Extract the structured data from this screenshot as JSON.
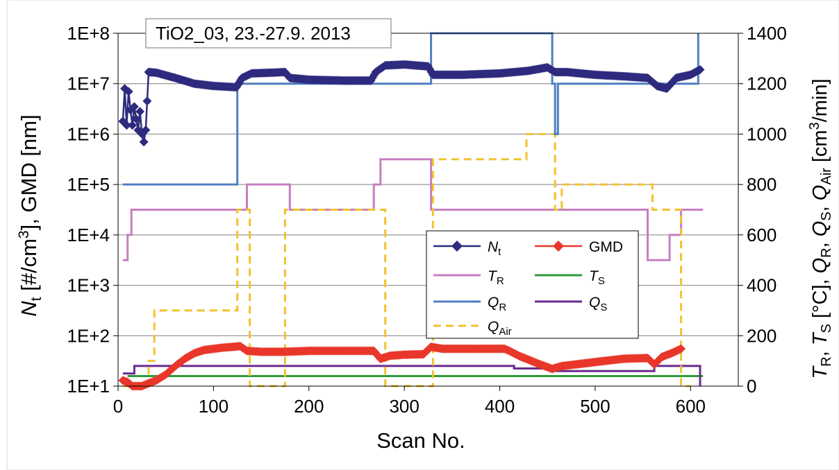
{
  "chart_data": {
    "type": "line",
    "annotation": "TiO2_03, 23.-27.9. 2013",
    "xlabel": "Scan No.",
    "ylabel_left": {
      "main": "N",
      "sub": "t",
      "rest": " [#/cm",
      "sup": "3",
      "end": "], GMD [nm]"
    },
    "ylabel_right": "T_R, T_S [°C], Q_R, Q_S, Q_Air [cm³/min]",
    "xlim": [
      0,
      650
    ],
    "xticks": [
      0,
      100,
      200,
      300,
      400,
      500,
      600
    ],
    "xtick_labels": [
      "0",
      "100",
      "200",
      "300",
      "400",
      "500",
      "600"
    ],
    "ylim_left": [
      10,
      100000000
    ],
    "yscale_left": "log",
    "yticks_left": [
      10,
      100,
      1000,
      10000,
      100000,
      1000000,
      10000000,
      100000000
    ],
    "ytick_labels_left": [
      "1E+1",
      "1E+2",
      "1E+3",
      "1E+4",
      "1E+5",
      "1E+6",
      "1E+7",
      "1E+8"
    ],
    "ylim_right": [
      0,
      1400
    ],
    "yticks_right": [
      0,
      200,
      400,
      600,
      800,
      1000,
      1200,
      1400
    ],
    "ytick_labels_right": [
      "0",
      "200",
      "400",
      "600",
      "800",
      "1000",
      "1200",
      "1400"
    ],
    "grid": "horizontal",
    "legend_position": "center-right",
    "series": [
      {
        "key": "Nt",
        "name_main": "N",
        "name_sub": "t",
        "axis": "left",
        "color": "#2E2A7E",
        "style": "line-diamond",
        "points": [
          [
            5,
            1800000
          ],
          [
            7,
            8000000
          ],
          [
            9,
            1500000
          ],
          [
            11,
            7000000
          ],
          [
            13,
            3000000
          ],
          [
            15,
            1500000
          ],
          [
            17,
            3500000
          ],
          [
            19,
            2000000
          ],
          [
            21,
            1200000
          ],
          [
            23,
            2800000
          ],
          [
            25,
            1000000
          ],
          [
            27,
            700000
          ],
          [
            29,
            1200000
          ],
          [
            32,
            17000000
          ],
          [
            40,
            16500000
          ],
          [
            60,
            13000000
          ],
          [
            80,
            10000000
          ],
          [
            100,
            9000000
          ],
          [
            124,
            8500000
          ],
          [
            130,
            13000000
          ],
          [
            140,
            16000000
          ],
          [
            160,
            16500000
          ],
          [
            175,
            17000000
          ],
          [
            180,
            13000000
          ],
          [
            200,
            12000000
          ],
          [
            240,
            11500000
          ],
          [
            265,
            11500000
          ],
          [
            270,
            17000000
          ],
          [
            280,
            23000000
          ],
          [
            300,
            24000000
          ],
          [
            325,
            22000000
          ],
          [
            330,
            15000000
          ],
          [
            360,
            15000000
          ],
          [
            400,
            16000000
          ],
          [
            430,
            18000000
          ],
          [
            450,
            21000000
          ],
          [
            458,
            17000000
          ],
          [
            470,
            17000000
          ],
          [
            500,
            15000000
          ],
          [
            530,
            14000000
          ],
          [
            555,
            13000000
          ],
          [
            565,
            9000000
          ],
          [
            575,
            8000000
          ],
          [
            585,
            13000000
          ],
          [
            600,
            15000000
          ],
          [
            610,
            19000000
          ]
        ]
      },
      {
        "key": "GMD",
        "name": "GMD",
        "axis": "left",
        "color": "#E8372A",
        "style": "line-diamond",
        "points": [
          [
            5,
            13
          ],
          [
            10,
            12
          ],
          [
            15,
            10
          ],
          [
            20,
            10
          ],
          [
            25,
            10
          ],
          [
            30,
            11
          ],
          [
            40,
            13
          ],
          [
            50,
            17
          ],
          [
            60,
            25
          ],
          [
            70,
            35
          ],
          [
            80,
            45
          ],
          [
            90,
            52
          ],
          [
            100,
            55
          ],
          [
            110,
            58
          ],
          [
            120,
            60
          ],
          [
            128,
            62
          ],
          [
            135,
            50
          ],
          [
            150,
            48
          ],
          [
            175,
            48
          ],
          [
            200,
            50
          ],
          [
            240,
            50
          ],
          [
            268,
            50
          ],
          [
            275,
            35
          ],
          [
            285,
            40
          ],
          [
            300,
            42
          ],
          [
            320,
            43
          ],
          [
            328,
            60
          ],
          [
            340,
            55
          ],
          [
            380,
            55
          ],
          [
            405,
            55
          ],
          [
            410,
            50
          ],
          [
            420,
            40
          ],
          [
            440,
            28
          ],
          [
            455,
            22
          ],
          [
            465,
            25
          ],
          [
            480,
            27
          ],
          [
            500,
            30
          ],
          [
            530,
            35
          ],
          [
            555,
            36
          ],
          [
            562,
            27
          ],
          [
            570,
            38
          ],
          [
            580,
            45
          ],
          [
            590,
            55
          ]
        ]
      },
      {
        "key": "TR",
        "name_main": "T",
        "name_sub": "R",
        "axis": "right",
        "color": "#C77EC2",
        "style": "line",
        "points": [
          [
            5,
            500
          ],
          [
            10,
            500
          ],
          [
            10,
            600
          ],
          [
            14,
            600
          ],
          [
            14,
            700
          ],
          [
            135,
            700
          ],
          [
            135,
            800
          ],
          [
            180,
            800
          ],
          [
            180,
            700
          ],
          [
            268,
            700
          ],
          [
            268,
            800
          ],
          [
            275,
            800
          ],
          [
            275,
            900
          ],
          [
            328,
            900
          ],
          [
            328,
            700
          ],
          [
            555,
            700
          ],
          [
            555,
            500
          ],
          [
            578,
            500
          ],
          [
            578,
            600
          ],
          [
            590,
            600
          ],
          [
            590,
            700
          ],
          [
            613,
            700
          ]
        ]
      },
      {
        "key": "TS",
        "name_main": "T",
        "name_sub": "S",
        "axis": "right",
        "color": "#2C9A3A",
        "style": "line",
        "points": [
          [
            10,
            40
          ],
          [
            613,
            40
          ]
        ]
      },
      {
        "key": "QR",
        "name_main": "Q",
        "name_sub": "R",
        "axis": "right",
        "color": "#4F7EC0",
        "style": "line",
        "points": [
          [
            5,
            800
          ],
          [
            125,
            800
          ],
          [
            125,
            1200
          ],
          [
            328,
            1200
          ],
          [
            328,
            1400
          ],
          [
            455,
            1400
          ],
          [
            455,
            1200
          ],
          [
            458,
            1200
          ],
          [
            458,
            1000
          ],
          [
            461,
            1000
          ],
          [
            461,
            1200
          ],
          [
            608,
            1200
          ],
          [
            608,
            1400
          ]
        ]
      },
      {
        "key": "QS",
        "name_main": "Q",
        "name_sub": "S",
        "axis": "right",
        "color": "#6A2A8E",
        "style": "line",
        "points": [
          [
            5,
            50
          ],
          [
            17,
            50
          ],
          [
            17,
            80
          ],
          [
            415,
            80
          ],
          [
            415,
            70
          ],
          [
            460,
            70
          ],
          [
            460,
            60
          ],
          [
            562,
            60
          ],
          [
            562,
            80
          ],
          [
            610,
            80
          ],
          [
            610,
            0
          ]
        ]
      },
      {
        "key": "QAir",
        "name_main": "Q",
        "name_sub": "Air",
        "axis": "right",
        "color": "#F2C12E",
        "style": "dashed",
        "points": [
          [
            5,
            0
          ],
          [
            32,
            0
          ],
          [
            32,
            100
          ],
          [
            38,
            100
          ],
          [
            38,
            300
          ],
          [
            125,
            300
          ],
          [
            125,
            700
          ],
          [
            138,
            700
          ],
          [
            138,
            0
          ],
          [
            175,
            0
          ],
          [
            175,
            700
          ],
          [
            280,
            700
          ],
          [
            280,
            0
          ],
          [
            330,
            0
          ],
          [
            330,
            900
          ],
          [
            428,
            900
          ],
          [
            428,
            1000
          ],
          [
            458,
            1000
          ],
          [
            458,
            700
          ],
          [
            465,
            700
          ],
          [
            465,
            800
          ],
          [
            560,
            800
          ],
          [
            560,
            700
          ],
          [
            590,
            700
          ],
          [
            590,
            0
          ],
          [
            600,
            0
          ]
        ]
      }
    ]
  }
}
